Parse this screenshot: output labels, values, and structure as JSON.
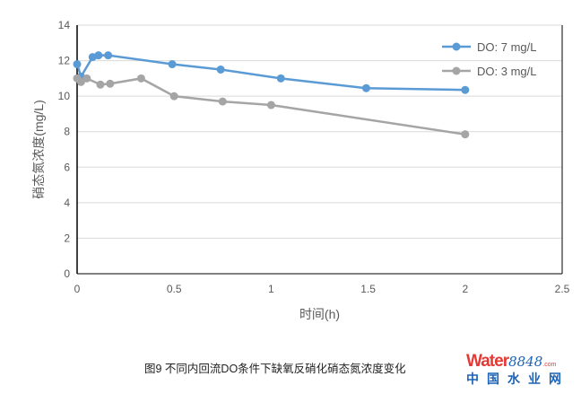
{
  "chart_data": {
    "type": "line",
    "title": "",
    "xlabel": "时间(h)",
    "ylabel": "硝态氮浓度(mg/L)",
    "xlim": [
      0,
      2.5
    ],
    "ylim": [
      0,
      14
    ],
    "xticks": [
      0,
      0.5,
      1,
      1.5,
      2,
      2.5
    ],
    "xtick_labels": [
      "0",
      "0.5",
      "1",
      "1.5",
      "2",
      "2.5"
    ],
    "yticks": [
      0,
      2,
      4,
      6,
      8,
      10,
      12,
      14
    ],
    "ytick_labels": [
      "0",
      "2",
      "4",
      "6",
      "8",
      "10",
      "12",
      "14"
    ],
    "grid": "horizontal",
    "legend": "top-right",
    "series": [
      {
        "name": "DO: 7 mg/L",
        "color": "#5b9bd5",
        "x": [
          0,
          0.02,
          0.08,
          0.11,
          0.16,
          0.49,
          0.74,
          1.05,
          1.49,
          2.0
        ],
        "y": [
          11.8,
          11.1,
          12.2,
          12.3,
          12.3,
          11.8,
          11.5,
          11.0,
          10.45,
          10.35
        ]
      },
      {
        "name": "DO: 3 mg/L",
        "color": "#a5a5a5",
        "x": [
          0,
          0.02,
          0.05,
          0.12,
          0.17,
          0.33,
          0.5,
          0.75,
          1.0,
          2.0
        ],
        "y": [
          11.0,
          10.8,
          11.0,
          10.65,
          10.7,
          11.0,
          10.0,
          9.7,
          9.5,
          7.85
        ]
      }
    ]
  },
  "caption": "图9 不同内回流DO条件下缺氧反硝化硝态氮浓度变化",
  "watermark": {
    "brand": "Water",
    "number": "8848",
    ".com": ".com",
    "cn": "中国水业网"
  }
}
